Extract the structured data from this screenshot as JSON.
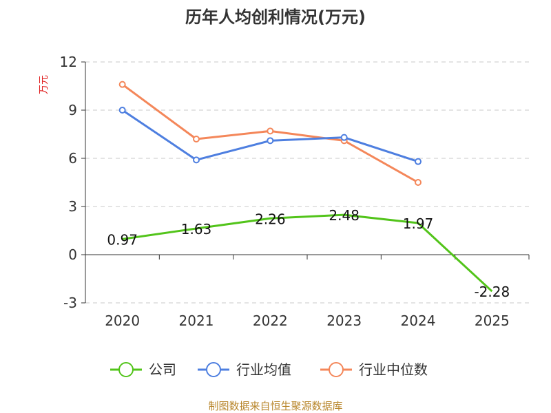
{
  "chart_data": {
    "type": "line",
    "title": "历年人均创利情况(万元)",
    "ylabel": "万元",
    "xlabel": "",
    "categories": [
      "2020",
      "2021",
      "2022",
      "2023",
      "2024",
      "2025"
    ],
    "ylim": [
      -3,
      12
    ],
    "yticks": [
      -3,
      0,
      3,
      6,
      9,
      12
    ],
    "grid": true,
    "legend_position": "bottom",
    "series": [
      {
        "name": "公司",
        "color": "#52c41a",
        "values": [
          0.97,
          1.63,
          2.26,
          2.48,
          1.97,
          -2.28
        ],
        "labels": [
          "0.97",
          "1.63",
          "2.26",
          "2.48",
          "1.97",
          "-2.28"
        ]
      },
      {
        "name": "行业均值",
        "color": "#4e7fe0",
        "values": [
          9.0,
          5.9,
          7.1,
          7.3,
          5.8,
          null
        ]
      },
      {
        "name": "行业中位数",
        "color": "#f4875a",
        "values": [
          10.6,
          7.2,
          7.7,
          7.1,
          4.5,
          null
        ]
      }
    ],
    "source": "制图数据来自恒生聚源数据库"
  }
}
